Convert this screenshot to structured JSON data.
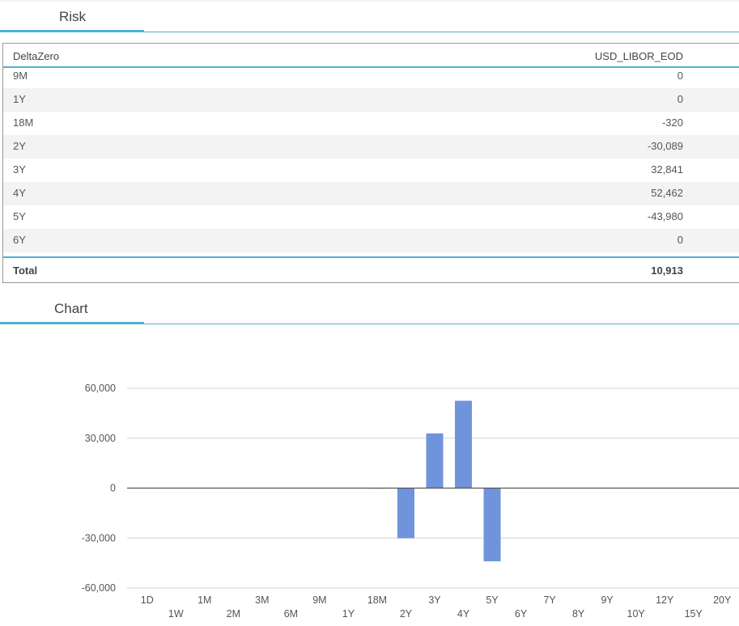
{
  "risk": {
    "title": "Risk",
    "header_left": "DeltaZero",
    "header_right": "USD_LIBOR_EOD",
    "rows": [
      {
        "tenor": "9M",
        "value": "0"
      },
      {
        "tenor": "1Y",
        "value": "0"
      },
      {
        "tenor": "18M",
        "value": "-320"
      },
      {
        "tenor": "2Y",
        "value": "-30,089"
      },
      {
        "tenor": "3Y",
        "value": "32,841"
      },
      {
        "tenor": "4Y",
        "value": "52,462"
      },
      {
        "tenor": "5Y",
        "value": "-43,980"
      },
      {
        "tenor": "6Y",
        "value": "0"
      }
    ],
    "total_label": "Total",
    "total_value": "10,913"
  },
  "chart": {
    "title": "Chart"
  },
  "chart_data": {
    "type": "bar",
    "categories": [
      "1D",
      "1W",
      "1M",
      "2M",
      "3M",
      "6M",
      "9M",
      "1Y",
      "18M",
      "2Y",
      "3Y",
      "4Y",
      "5Y",
      "6Y",
      "7Y",
      "8Y",
      "9Y",
      "10Y",
      "12Y",
      "15Y",
      "20Y"
    ],
    "values": [
      0,
      0,
      0,
      0,
      0,
      0,
      0,
      0,
      -320,
      -30089,
      32841,
      52462,
      -43980,
      0,
      0,
      0,
      0,
      0,
      0,
      0,
      0
    ],
    "yticks": [
      60000,
      30000,
      0,
      -30000,
      -60000
    ],
    "ytick_labels": [
      "60,000",
      "30,000",
      "0",
      "-30,000",
      "-60,000"
    ],
    "ylim": [
      -60000,
      60000
    ],
    "grid": true,
    "bar_color": "#6f94dc",
    "title": "",
    "xlabel": "",
    "ylabel": ""
  }
}
